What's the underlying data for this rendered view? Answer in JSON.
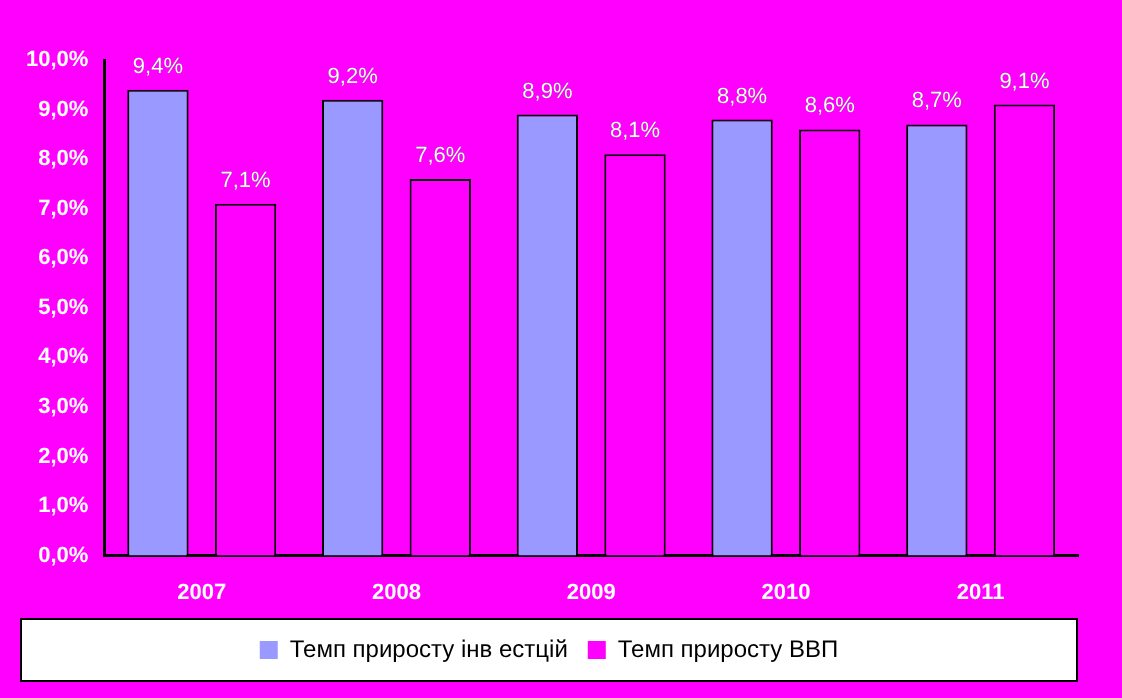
{
  "chart_data": {
    "type": "bar",
    "categories": [
      "2007",
      "2008",
      "2009",
      "2010",
      "2011"
    ],
    "series": [
      {
        "name": "Темп приросту інв естцій",
        "color": "#9999ff",
        "values": [
          9.4,
          9.2,
          8.9,
          8.8,
          8.7
        ],
        "value_labels": [
          "9,4%",
          "9,2%",
          "8,9%",
          "8,8%",
          "8,7%"
        ]
      },
      {
        "name": "Темп приросту ВВП",
        "color": "#ff00ff",
        "values": [
          7.1,
          7.6,
          8.1,
          8.6,
          9.1
        ],
        "value_labels": [
          "7,1%",
          "7,6%",
          "8,1%",
          "8,6%",
          "9,1%"
        ]
      }
    ],
    "ylim": [
      0,
      10
    ],
    "yticks": [
      {
        "value": 0,
        "label": "0,0%"
      },
      {
        "value": 1,
        "label": "1,0%"
      },
      {
        "value": 2,
        "label": "2,0%"
      },
      {
        "value": 3,
        "label": "3,0%"
      },
      {
        "value": 4,
        "label": "4,0%"
      },
      {
        "value": 5,
        "label": "5,0%"
      },
      {
        "value": 6,
        "label": "6,0%"
      },
      {
        "value": 7,
        "label": "7,0%"
      },
      {
        "value": 8,
        "label": "8,0%"
      },
      {
        "value": 9,
        "label": "9,0%"
      },
      {
        "value": 10,
        "label": "10,0%"
      }
    ],
    "grid": false,
    "legend": "bottom"
  }
}
